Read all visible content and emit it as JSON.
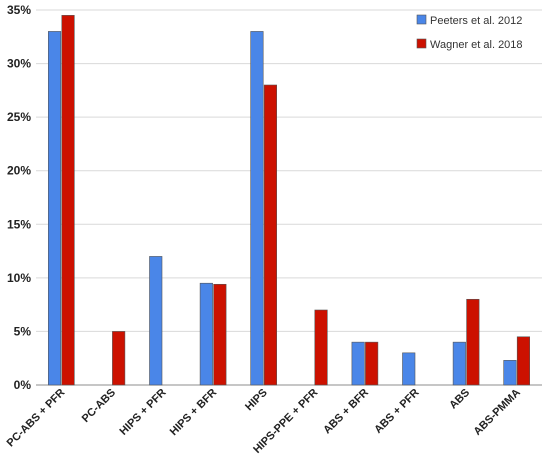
{
  "chart_data": {
    "type": "bar",
    "title": "",
    "xlabel": "",
    "ylabel": "",
    "ylim": [
      0,
      35
    ],
    "yticks": [
      "0%",
      "5%",
      "10%",
      "15%",
      "20%",
      "25%",
      "30%",
      "35%"
    ],
    "y_unit": "%",
    "grid": "horizontal",
    "legend_position": "top-right",
    "categories": [
      "PC-ABS + PFR",
      "PC-ABS",
      "HIPS + PFR",
      "HIPS + BFR",
      "HIPS",
      "HIPS-PPE + PFR",
      "ABS + BFR",
      "ABS + PFR",
      "ABS",
      "ABS-PMMA"
    ],
    "series": [
      {
        "name": "Peeters et al. 2012",
        "color": "#4a86e8",
        "values": [
          33,
          null,
          12,
          9.5,
          33,
          null,
          4,
          3,
          4,
          2.3
        ]
      },
      {
        "name": "Wagner et al. 2018",
        "color": "#cc1100",
        "values": [
          34.5,
          5,
          null,
          9.4,
          28,
          7,
          4,
          null,
          8,
          4.5
        ]
      }
    ]
  }
}
